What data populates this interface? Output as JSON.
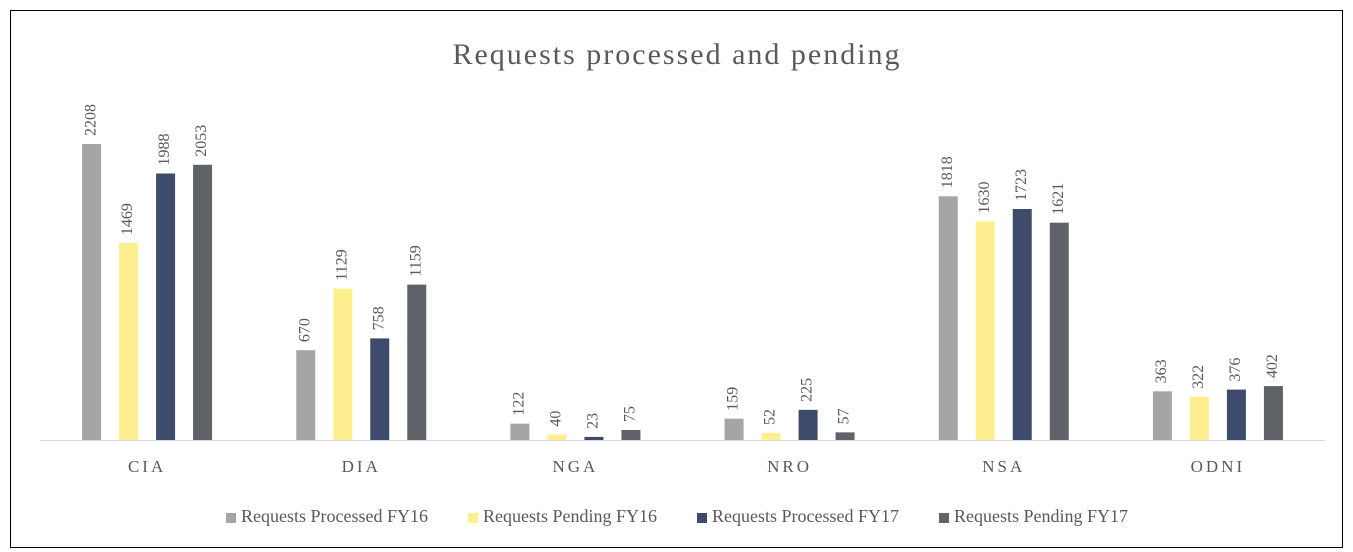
{
  "chart_data": {
    "type": "bar",
    "title": "Requests processed and pending",
    "categories": [
      "CIA",
      "DIA",
      "NGA",
      "NRO",
      "NSA",
      "ODNI"
    ],
    "series": [
      {
        "name": "Requests Processed FY16",
        "color": "#a5a5a7",
        "values": [
          2208,
          670,
          122,
          159,
          1818,
          363
        ]
      },
      {
        "name": "Requests Pending FY16",
        "color": "#fdee8e",
        "values": [
          1469,
          1129,
          40,
          52,
          1630,
          322
        ]
      },
      {
        "name": "Requests Processed FY17",
        "color": "#3f4b6c",
        "values": [
          1988,
          758,
          23,
          225,
          1723,
          376
        ]
      },
      {
        "name": "Requests Pending FY17",
        "color": "#5f6266",
        "values": [
          2053,
          1159,
          75,
          57,
          1621,
          402
        ]
      }
    ],
    "legend": "bottom"
  }
}
